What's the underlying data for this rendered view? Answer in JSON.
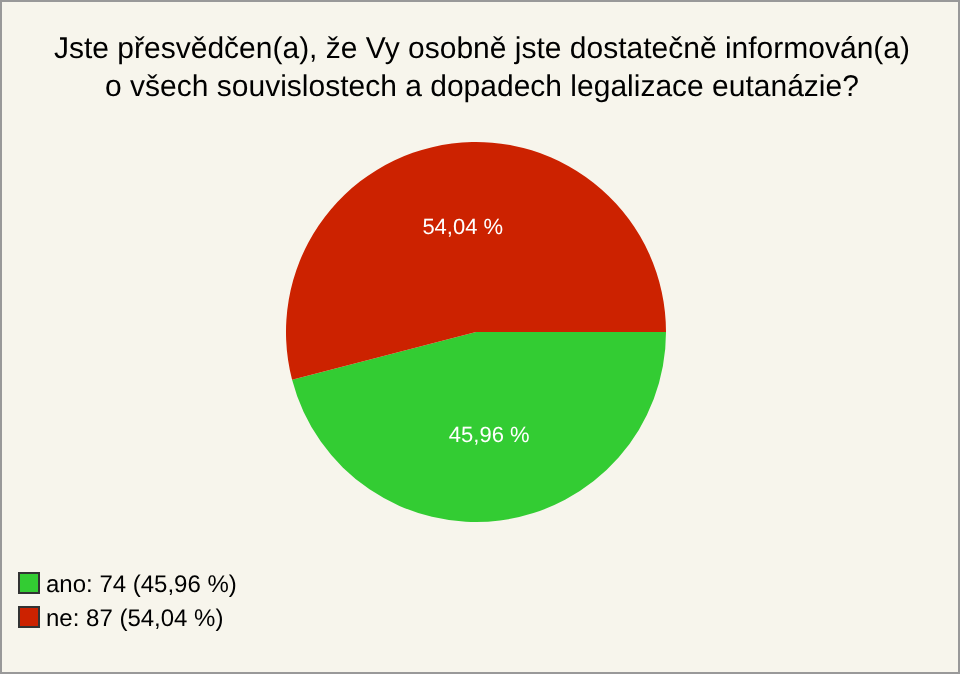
{
  "chart_data": {
    "type": "pie",
    "title": "Jste přesvědčen(a), že Vy osobně jste dostatečně informován(a) o všech souvislostech a dopadech legalizace eutanázie?",
    "categories": [
      "ano: 74 (45,96 %)",
      "ne: 87 (54,04 %)"
    ],
    "values": [
      45.96,
      54.04
    ],
    "value_labels": [
      "45,96 %",
      "54,04 %"
    ],
    "colors": [
      "#33cc33",
      "#cc2200"
    ],
    "legend": "bottom left"
  }
}
